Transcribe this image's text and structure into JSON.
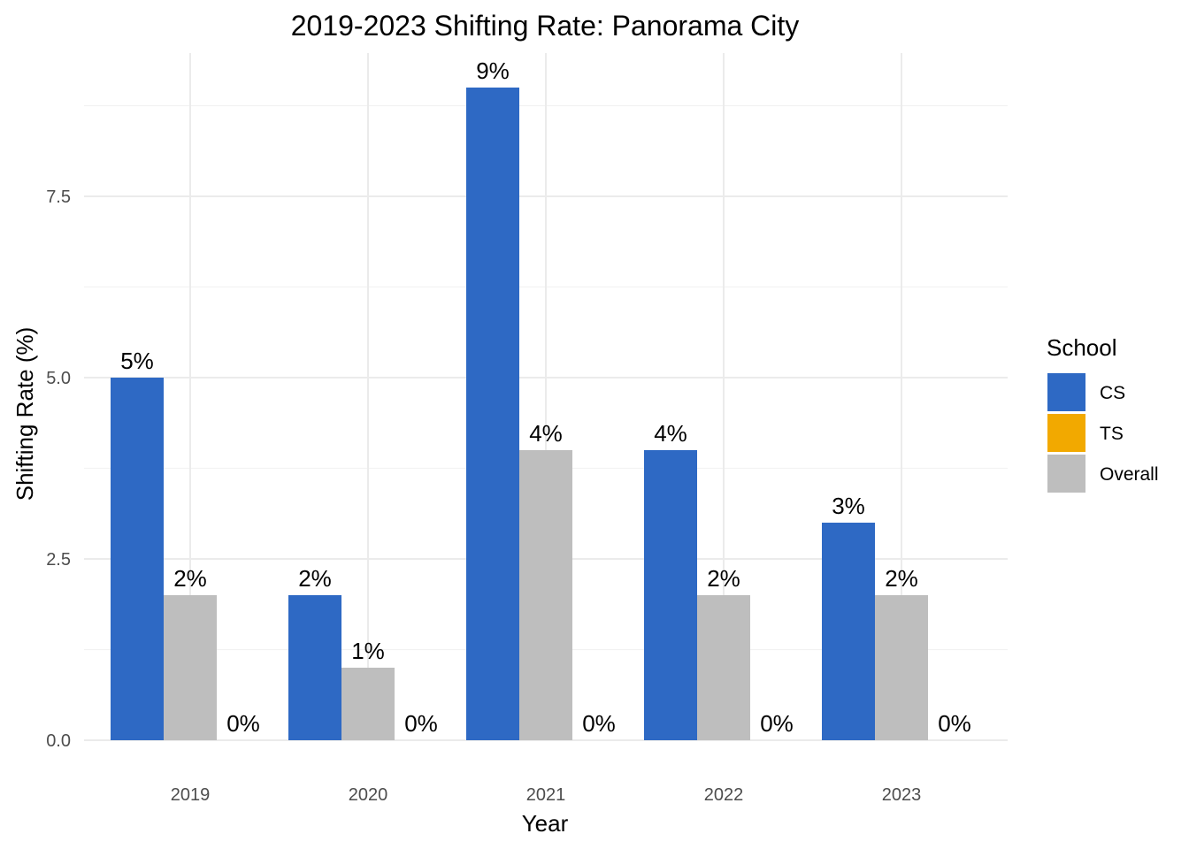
{
  "chart_data": {
    "type": "bar",
    "title": "2019-2023 Shifting Rate: Panorama City",
    "xlabel": "Year",
    "ylabel": "Shifting Rate (%)",
    "categories": [
      "2019",
      "2020",
      "2021",
      "2022",
      "2023"
    ],
    "ylim": [
      0,
      9
    ],
    "yticks": [
      "0.0",
      "2.5",
      "5.0",
      "7.5"
    ],
    "ytick_values": [
      0,
      2.5,
      5,
      7.5
    ],
    "grid": true,
    "legend": {
      "title": "School",
      "position": "right",
      "entries": [
        "CS",
        "TS",
        "Overall"
      ]
    },
    "series": [
      {
        "name": "CS",
        "color": "#2e69c4",
        "values": [
          5,
          2,
          9,
          4,
          3
        ],
        "labels": [
          "5%",
          "2%",
          "9%",
          "4%",
          "3%"
        ]
      },
      {
        "name": "Overall",
        "color": "#bebebe",
        "values": [
          2,
          1,
          4,
          2,
          2
        ],
        "labels": [
          "2%",
          "1%",
          "4%",
          "2%",
          "2%"
        ]
      },
      {
        "name": "TS",
        "color": "#f2a900",
        "values": [
          0,
          0,
          0,
          0,
          0
        ],
        "labels": [
          "0%",
          "0%",
          "0%",
          "0%",
          "0%"
        ]
      }
    ]
  }
}
